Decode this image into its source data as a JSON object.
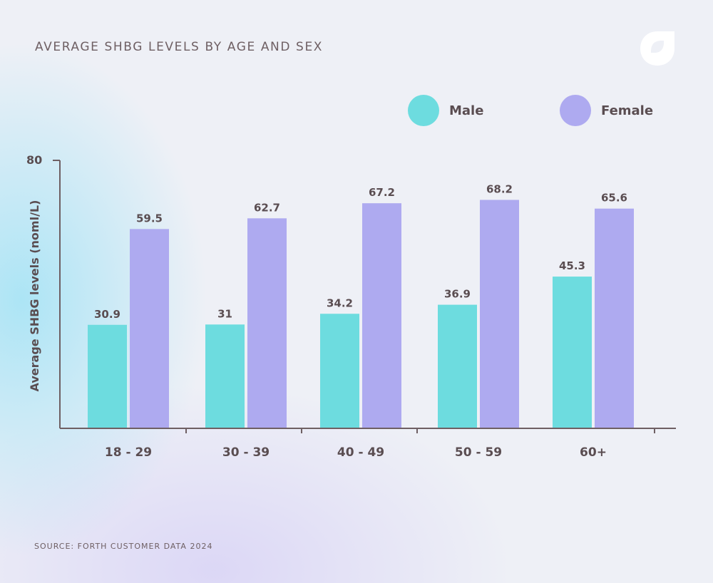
{
  "brand": {
    "logo_icon": "forth-logo-icon"
  },
  "chart_data": {
    "type": "bar",
    "title": "AVERAGE SHBG LEVELS BY AGE AND SEX",
    "xlabel": "",
    "ylabel": "Average SHBG levels (noml/L)",
    "ylim": [
      0,
      80
    ],
    "y_tick_labels": [
      "80"
    ],
    "categories": [
      "18 - 29",
      "30 - 39",
      "40 - 49",
      "50 - 59",
      "60+"
    ],
    "series": [
      {
        "name": "Male",
        "values": [
          30.9,
          31,
          34.2,
          36.9,
          45.3
        ],
        "value_labels": [
          "30.9",
          "31",
          "34.2",
          "36.9",
          "45.3"
        ],
        "color": "#6ddcdf"
      },
      {
        "name": "Female",
        "values": [
          59.5,
          62.7,
          67.2,
          68.2,
          65.6
        ],
        "value_labels": [
          "59.5",
          "62.7",
          "67.2",
          "68.2",
          "65.6"
        ],
        "color": "#aeaaf0"
      }
    ],
    "legend": {
      "position": "top-right"
    },
    "grid": false
  },
  "source": "SOURCE: FORTH CUSTOMER DATA 2024"
}
